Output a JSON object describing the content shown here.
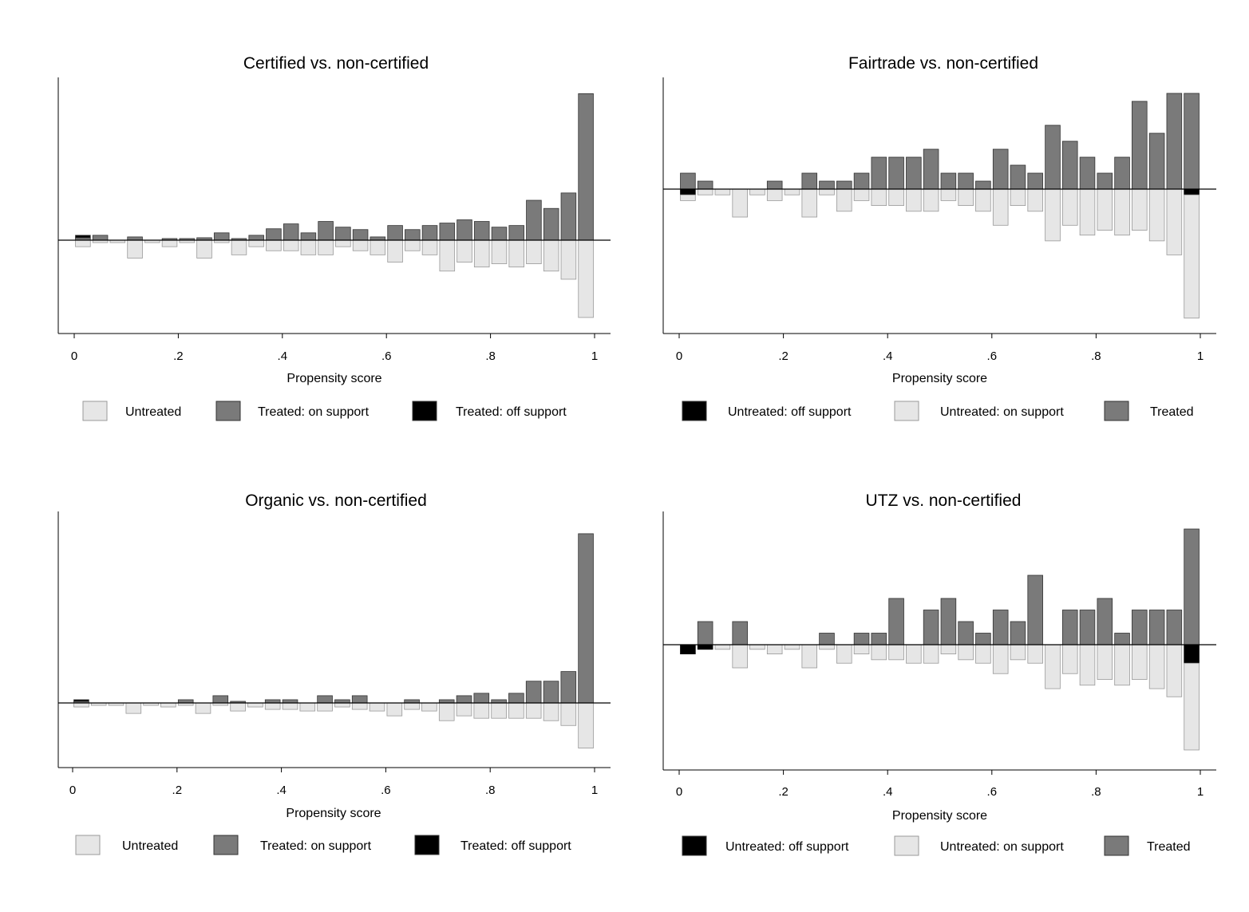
{
  "colors": {
    "untreated": "#e6e6e6",
    "treated": "#7a7a7a",
    "off_support": "#000000"
  },
  "chart_data": [
    {
      "type": "bar",
      "title": "Certified vs. non-certified",
      "xlabel": "Propensity score",
      "ylabel": "",
      "xlim": [
        0,
        1
      ],
      "x_ticks": [
        "0",
        ".2",
        ".4",
        ".6",
        ".8",
        "1"
      ],
      "bin_width": 0.0333,
      "legend": [
        "Untreated",
        "Treated: on support",
        "Treated: off support"
      ],
      "legend_position": "bottom",
      "series": [
        {
          "name": "Untreated",
          "side": "down",
          "color_key": "untreated",
          "x": [
            0.0167,
            0.05,
            0.0833,
            0.1167,
            0.15,
            0.1833,
            0.2167,
            0.25,
            0.2833,
            0.3167,
            0.35,
            0.3833,
            0.4167,
            0.45,
            0.4833,
            0.5167,
            0.55,
            0.5833,
            0.6167,
            0.65,
            0.6833,
            0.7167,
            0.75,
            0.7833,
            0.8167,
            0.85,
            0.8833,
            0.9167,
            0.95,
            0.9833
          ],
          "values": [
            0.8,
            0.3,
            0.3,
            2.2,
            0.3,
            0.8,
            0.3,
            2.2,
            0.3,
            1.8,
            0.8,
            1.3,
            1.3,
            1.8,
            1.8,
            0.8,
            1.3,
            1.8,
            2.7,
            1.3,
            1.8,
            3.8,
            2.7,
            3.3,
            2.9,
            3.3,
            2.9,
            3.8,
            4.8,
            9.5
          ]
        },
        {
          "name": "Treated: on support",
          "side": "up",
          "color_key": "treated",
          "x": [
            0.0167,
            0.05,
            0.0833,
            0.1167,
            0.15,
            0.1833,
            0.2167,
            0.25,
            0.2833,
            0.3167,
            0.35,
            0.3833,
            0.4167,
            0.45,
            0.4833,
            0.5167,
            0.55,
            0.5833,
            0.6167,
            0.65,
            0.6833,
            0.7167,
            0.75,
            0.7833,
            0.8167,
            0.85,
            0.8833,
            0.9167,
            0.95,
            0.9833
          ],
          "values": [
            0.3,
            0.6,
            0,
            0.4,
            0,
            0.2,
            0.2,
            0.3,
            0.9,
            0.2,
            0.6,
            1.4,
            2.0,
            0.9,
            2.3,
            1.6,
            1.3,
            0.4,
            1.8,
            1.3,
            1.8,
            2.1,
            2.5,
            2.3,
            1.6,
            1.8,
            4.9,
            3.9,
            5.8,
            18
          ]
        },
        {
          "name": "Treated: off support",
          "side": "up",
          "color_key": "off_support",
          "x": [
            0.0167
          ],
          "values": [
            0.3
          ]
        }
      ]
    },
    {
      "type": "bar",
      "title": "Fairtrade vs. non-certified",
      "xlabel": "Propensity score",
      "ylabel": "",
      "xlim": [
        0,
        1
      ],
      "x_ticks": [
        "0",
        ".2",
        ".4",
        ".6",
        ".8",
        "1"
      ],
      "bin_width": 0.0333,
      "legend": [
        "Untreated: off support",
        "Untreated: on support",
        "Treated"
      ],
      "legend_position": "bottom",
      "series": [
        {
          "name": "Untreated: off support",
          "side": "down",
          "color_key": "off_support",
          "x": [
            0.0167,
            0.9833
          ],
          "values": [
            0.7,
            0.7
          ]
        },
        {
          "name": "Untreated: on support",
          "side": "down",
          "color_key": "untreated",
          "x": [
            0.0167,
            0.05,
            0.0833,
            0.1167,
            0.15,
            0.1833,
            0.2167,
            0.25,
            0.2833,
            0.3167,
            0.35,
            0.3833,
            0.4167,
            0.45,
            0.4833,
            0.5167,
            0.55,
            0.5833,
            0.6167,
            0.65,
            0.6833,
            0.7167,
            0.75,
            0.7833,
            0.8167,
            0.85,
            0.8833,
            0.9167,
            0.95,
            0.9833
          ],
          "values": [
            0.7,
            0.7,
            0.7,
            3.4,
            0.7,
            1.4,
            0.7,
            3.4,
            0.7,
            2.7,
            1.4,
            2.0,
            2.0,
            2.7,
            2.7,
            1.4,
            2.0,
            2.7,
            4.4,
            2.0,
            2.7,
            6.3,
            4.4,
            5.6,
            5.0,
            5.6,
            5.0,
            6.3,
            8.0,
            15.0
          ]
        },
        {
          "name": "Treated",
          "side": "up",
          "color_key": "treated",
          "x": [
            0.0167,
            0.05,
            0.0833,
            0.1167,
            0.15,
            0.1833,
            0.2167,
            0.25,
            0.2833,
            0.3167,
            0.35,
            0.3833,
            0.4167,
            0.45,
            0.4833,
            0.5167,
            0.55,
            0.5833,
            0.6167,
            0.65,
            0.6833,
            0.7167,
            0.75,
            0.7833,
            0.8167,
            0.85,
            0.8833,
            0.9167,
            0.95,
            0.9833
          ],
          "values": [
            2,
            1,
            0,
            0,
            0,
            1,
            0,
            2,
            1,
            1,
            2,
            4,
            4,
            4,
            5,
            2,
            2,
            1,
            5,
            3,
            2,
            8,
            6,
            4,
            2,
            4,
            11,
            7,
            12,
            12
          ]
        }
      ]
    },
    {
      "type": "bar",
      "title": "Organic vs. non-certified",
      "xlabel": "Propensity score",
      "ylabel": "",
      "xlim": [
        0,
        1
      ],
      "x_ticks": [
        "0",
        ".2",
        ".4",
        ".6",
        ".8",
        "1"
      ],
      "bin_width": 0.0333,
      "legend": [
        "Untreated",
        "Treated: on support",
        "Treated: off support"
      ],
      "legend_position": "bottom",
      "series": [
        {
          "name": "Untreated",
          "side": "down",
          "color_key": "untreated",
          "x": [
            0.0167,
            0.05,
            0.0833,
            0.1167,
            0.15,
            0.1833,
            0.2167,
            0.25,
            0.2833,
            0.3167,
            0.35,
            0.3833,
            0.4167,
            0.45,
            0.4833,
            0.5167,
            0.55,
            0.5833,
            0.6167,
            0.65,
            0.6833,
            0.7167,
            0.75,
            0.7833,
            0.8167,
            0.85,
            0.8833,
            0.9167,
            0.95,
            0.9833
          ],
          "values": [
            0.5,
            0.3,
            0.3,
            1.3,
            0.3,
            0.5,
            0.3,
            1.3,
            0.3,
            1.0,
            0.5,
            0.8,
            0.8,
            1.0,
            1.0,
            0.5,
            0.8,
            1.0,
            1.6,
            0.8,
            1.0,
            2.2,
            1.6,
            1.9,
            1.9,
            1.9,
            1.9,
            2.2,
            2.8,
            5.6
          ]
        },
        {
          "name": "Treated: on support",
          "side": "up",
          "color_key": "treated",
          "x": [
            0.0167,
            0.05,
            0.0833,
            0.1167,
            0.15,
            0.1833,
            0.2167,
            0.25,
            0.2833,
            0.3167,
            0.35,
            0.3833,
            0.4167,
            0.45,
            0.4833,
            0.5167,
            0.55,
            0.5833,
            0.6167,
            0.65,
            0.6833,
            0.7167,
            0.75,
            0.7833,
            0.8167,
            0.85,
            0.8833,
            0.9167,
            0.95,
            0.9833
          ],
          "values": [
            0.2,
            0,
            0,
            0,
            0,
            0,
            0.4,
            0,
            0.9,
            0.2,
            0,
            0.4,
            0.4,
            0,
            0.9,
            0.4,
            0.9,
            0,
            0,
            0.4,
            0,
            0.4,
            0.9,
            1.2,
            0.4,
            1.2,
            2.7,
            2.7,
            3.9,
            21
          ]
        },
        {
          "name": "Treated: off support",
          "side": "up",
          "color_key": "off_support",
          "x": [
            0.0167
          ],
          "values": [
            0.2
          ]
        }
      ]
    },
    {
      "type": "bar",
      "title": "UTZ vs. non-certified",
      "xlabel": "Propensity score",
      "ylabel": "",
      "xlim": [
        0,
        1
      ],
      "x_ticks": [
        "0",
        ".2",
        ".4",
        ".6",
        ".8",
        "1"
      ],
      "bin_width": 0.0333,
      "legend": [
        "Untreated: off support",
        "Untreated: on support",
        "Treated"
      ],
      "legend_position": "bottom",
      "series": [
        {
          "name": "Untreated: off support",
          "side": "down",
          "color_key": "off_support",
          "x": [
            0.0167,
            0.05,
            0.9833
          ],
          "values": [
            0.8,
            0.4,
            1.6
          ]
        },
        {
          "name": "Untreated: on support",
          "side": "down",
          "color_key": "untreated",
          "x": [
            0.0167,
            0.05,
            0.0833,
            0.1167,
            0.15,
            0.1833,
            0.2167,
            0.25,
            0.2833,
            0.3167,
            0.35,
            0.3833,
            0.4167,
            0.45,
            0.4833,
            0.5167,
            0.55,
            0.5833,
            0.6167,
            0.65,
            0.6833,
            0.7167,
            0.75,
            0.7833,
            0.8167,
            0.85,
            0.8833,
            0.9167,
            0.95,
            0.9833
          ],
          "values": [
            0,
            0,
            0.4,
            2.0,
            0.4,
            0.8,
            0.4,
            2.0,
            0.4,
            1.6,
            0.8,
            1.3,
            1.3,
            1.6,
            1.6,
            0.8,
            1.3,
            1.6,
            2.5,
            1.3,
            1.6,
            3.8,
            2.5,
            3.5,
            3.0,
            3.5,
            3.0,
            3.8,
            4.5,
            7.5
          ]
        },
        {
          "name": "Treated",
          "side": "up",
          "color_key": "treated",
          "x": [
            0.0167,
            0.05,
            0.0833,
            0.1167,
            0.15,
            0.1833,
            0.2167,
            0.25,
            0.2833,
            0.3167,
            0.35,
            0.3833,
            0.4167,
            0.45,
            0.4833,
            0.5167,
            0.55,
            0.5833,
            0.6167,
            0.65,
            0.6833,
            0.7167,
            0.75,
            0.7833,
            0.8167,
            0.85,
            0.8833,
            0.9167,
            0.95,
            0.9833
          ],
          "values": [
            0,
            2,
            0,
            2,
            0,
            0,
            0,
            0,
            1,
            0,
            1,
            1,
            4,
            0,
            3,
            4,
            2,
            1,
            3,
            2,
            6,
            0,
            3,
            3,
            4,
            1,
            3,
            3,
            3,
            10
          ]
        }
      ]
    }
  ]
}
